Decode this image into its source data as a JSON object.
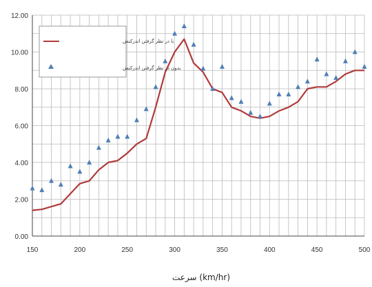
{
  "chart_data": {
    "type": "line",
    "xlabel": "سرعت (km/hr)",
    "ylabel": "",
    "xlim": [
      150,
      500
    ],
    "ylim": [
      0,
      12
    ],
    "x_ticks": [
      "150",
      "200",
      "250",
      "300",
      "350",
      "400",
      "450",
      "500"
    ],
    "y_ticks": [
      "0.00",
      "2.00",
      "4.00",
      "6.00",
      "8.00",
      "10.00",
      "12.00"
    ],
    "grid": true,
    "legend_position": "top-left",
    "series": [
      {
        "name": "با در نظر گرفتن اندرکنش",
        "style": "line",
        "color": "#b03a3a",
        "x": [
          150,
          160,
          170,
          180,
          190,
          200,
          210,
          220,
          230,
          240,
          250,
          260,
          270,
          280,
          290,
          300,
          310,
          320,
          330,
          340,
          350,
          360,
          370,
          380,
          390,
          400,
          410,
          420,
          430,
          440,
          450,
          460,
          470,
          480,
          490,
          500
        ],
        "values": [
          1.4,
          1.45,
          1.6,
          1.75,
          2.3,
          2.85,
          3.0,
          3.6,
          4.0,
          4.1,
          4.5,
          5.0,
          5.3,
          7.0,
          8.9,
          10.0,
          10.7,
          9.4,
          8.9,
          8.0,
          7.8,
          7.0,
          6.8,
          6.5,
          6.4,
          6.5,
          6.8,
          7.0,
          7.3,
          8.0,
          8.1,
          8.1,
          8.4,
          8.8,
          9.0,
          9.0
        ]
      },
      {
        "name": "بدون در نظر گرفتن اندرکنش",
        "style": "marker",
        "color": "#4f7fb5",
        "x": [
          150,
          160,
          170,
          180,
          190,
          200,
          210,
          220,
          230,
          240,
          250,
          260,
          270,
          280,
          290,
          300,
          310,
          320,
          330,
          340,
          350,
          360,
          370,
          380,
          390,
          400,
          410,
          420,
          430,
          440,
          450,
          460,
          470,
          480,
          490,
          500
        ],
        "values": [
          2.6,
          2.5,
          3.0,
          2.8,
          3.8,
          3.5,
          4.0,
          4.8,
          5.2,
          5.4,
          5.4,
          6.3,
          6.9,
          8.1,
          9.5,
          11.0,
          11.4,
          10.4,
          9.1,
          8.0,
          9.2,
          7.5,
          7.3,
          6.7,
          6.5,
          7.2,
          7.7,
          7.7,
          8.1,
          8.4,
          9.6,
          8.8,
          8.6,
          9.5,
          10.0,
          9.2
        ]
      }
    ]
  }
}
